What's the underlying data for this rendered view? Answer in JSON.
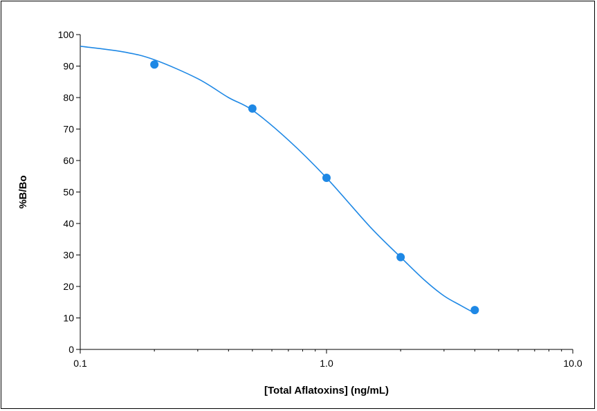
{
  "chart_data": {
    "type": "scatter",
    "title": "",
    "xlabel": "[Total Aflatoxins] (ng/mL)",
    "ylabel": "%B/Bo",
    "x_scale": "log",
    "xlim": [
      0.1,
      10.0
    ],
    "ylim": [
      0,
      100
    ],
    "x_ticks": [
      "0.1",
      "1.0",
      "10.0"
    ],
    "y_ticks": [
      "0",
      "10",
      "20",
      "30",
      "40",
      "50",
      "60",
      "70",
      "80",
      "90",
      "100"
    ],
    "grid": false,
    "legend": "none",
    "series": [
      {
        "kind": "points",
        "x": [
          0.2,
          0.5,
          1.0,
          2.0,
          4.0
        ],
        "y": [
          90.5,
          76.5,
          54.5,
          29.3,
          12.5
        ]
      },
      {
        "kind": "fitted-curve",
        "x": [
          0.1,
          0.15,
          0.2,
          0.3,
          0.4,
          0.5,
          0.7,
          1.0,
          1.5,
          2.0,
          2.5,
          3.0,
          3.5,
          4.0
        ],
        "y": [
          96.3,
          94.5,
          92.0,
          86.0,
          80.0,
          76.0,
          66.5,
          54.5,
          39.0,
          29.3,
          22.0,
          17.0,
          14.0,
          11.5
        ]
      }
    ],
    "colors": {
      "series": "#1e88e5",
      "curve": "#1e88e5",
      "axis": "#000000"
    }
  }
}
